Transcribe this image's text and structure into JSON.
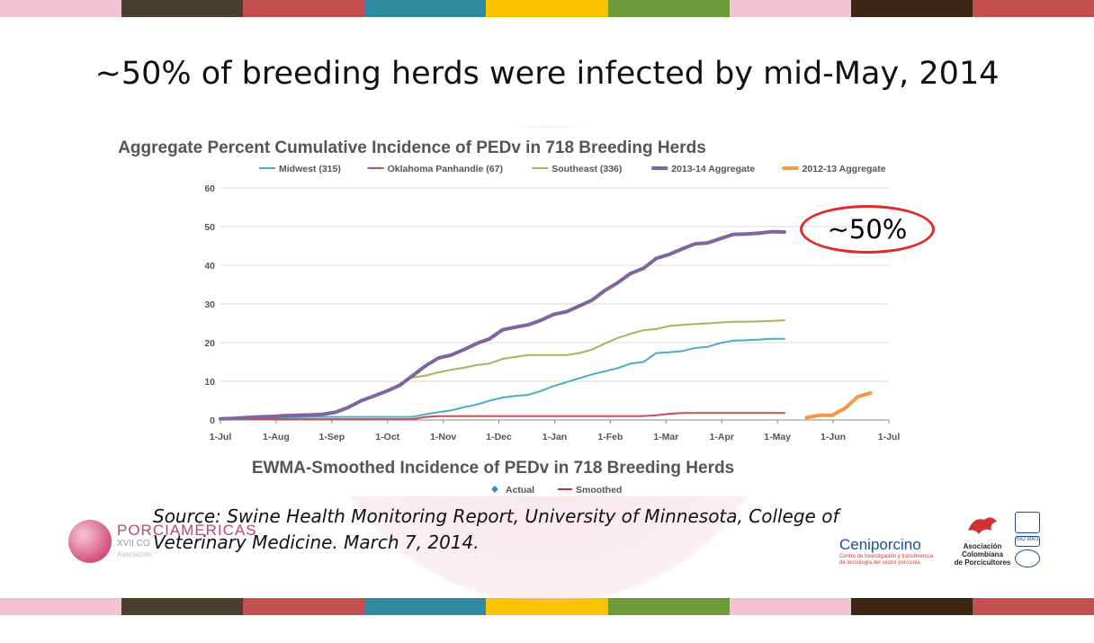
{
  "stripe_colors": [
    "#f2c4d3",
    "#4a4030",
    "#c25050",
    "#2f8a9f",
    "#fbc200",
    "#6e9a3c",
    "#f2c4d3",
    "#3e2614",
    "#c25050"
  ],
  "slide_title": "~50% of breeding herds were infected by mid-May, 2014",
  "callout": "~50%",
  "source_text": "Source: Swine Health Monitoring Report, University of Minnesota, College of Veterinary Medicine. March 7, 2014.",
  "logos": {
    "left_name": "PORCIAMÉRICAS",
    "left_sub": "XVII CO",
    "left_sub2": "Asociación",
    "ceni_name": "Ceniporcino",
    "ceni_tag1": "Centro de Investigación y transferencia",
    "ceni_tag2": "de tecnología del sector porcícola",
    "aso_line1": "Asociación",
    "aso_line2": "Colombiana",
    "aso_line3": "de Porcicultores",
    "iso1": "ISO 9001"
  },
  "chart_data": {
    "type": "line",
    "title": "Aggregate Percent Cumulative Incidence of PEDv in 718 Breeding Herds",
    "subtitle": "EWMA-Smoothed Incidence of PEDv in 718 Breeding Herds",
    "subtitle_legend": [
      {
        "name": "Actual",
        "color": "#4a86c6"
      },
      {
        "name": "Smoothed",
        "color": "#c0392b"
      }
    ],
    "x_ticks": [
      "1-Jul",
      "1-Aug",
      "1-Sep",
      "1-Oct",
      "1-Nov",
      "1-Dec",
      "1-Jan",
      "1-Feb",
      "1-Mar",
      "1-Apr",
      "1-May",
      "1-Jun",
      "1-Jul"
    ],
    "ylim": [
      0,
      60
    ],
    "y_ticks": [
      0,
      10,
      20,
      30,
      40,
      50,
      60
    ],
    "grid": true,
    "legend_position": "top",
    "series": [
      {
        "name": "Midwest (315)",
        "color": "#4bacc6",
        "width": 2,
        "points": [
          [
            0,
            0.3
          ],
          [
            7,
            0.4
          ],
          [
            14,
            0.5
          ],
          [
            21,
            0.5
          ],
          [
            28,
            0.6
          ],
          [
            35,
            0.6
          ],
          [
            42,
            0.7
          ],
          [
            49,
            0.8
          ],
          [
            56,
            0.8
          ],
          [
            63,
            0.8
          ],
          [
            70,
            0.8
          ],
          [
            77,
            0.8
          ],
          [
            84,
            0.8
          ],
          [
            91,
            0.8
          ],
          [
            98,
            0.8
          ],
          [
            105,
            0.8
          ],
          [
            112,
            1.5
          ],
          [
            119,
            2.0
          ],
          [
            126,
            2.5
          ],
          [
            133,
            3.3
          ],
          [
            140,
            4.0
          ],
          [
            147,
            5.0
          ],
          [
            154,
            5.8
          ],
          [
            161,
            6.2
          ],
          [
            168,
            6.5
          ],
          [
            175,
            7.5
          ],
          [
            182,
            8.8
          ],
          [
            189,
            9.8
          ],
          [
            196,
            10.8
          ],
          [
            203,
            11.8
          ],
          [
            210,
            12.6
          ],
          [
            217,
            13.4
          ],
          [
            224,
            14.6
          ],
          [
            231,
            15.0
          ],
          [
            238,
            17.3
          ],
          [
            245,
            17.5
          ],
          [
            252,
            17.8
          ],
          [
            259,
            18.6
          ],
          [
            266,
            18.9
          ],
          [
            273,
            19.9
          ],
          [
            280,
            20.5
          ],
          [
            287,
            20.6
          ],
          [
            294,
            20.8
          ],
          [
            301,
            21.0
          ],
          [
            308,
            21.0
          ]
        ]
      },
      {
        "name": "Oklahoma Panhandle (67)",
        "color": "#c0504d",
        "width": 2,
        "points": [
          [
            0,
            0.2
          ],
          [
            105,
            0.2
          ],
          [
            112,
            0.8
          ],
          [
            119,
            1.0
          ],
          [
            230,
            1.0
          ],
          [
            238,
            1.2
          ],
          [
            245,
            1.6
          ],
          [
            252,
            1.8
          ],
          [
            308,
            1.8
          ]
        ]
      },
      {
        "name": "Southeast (336)",
        "color": "#9bbb59",
        "width": 2,
        "points": [
          [
            105,
            11.0
          ],
          [
            112,
            11.5
          ],
          [
            119,
            12.3
          ],
          [
            126,
            13.0
          ],
          [
            133,
            13.5
          ],
          [
            140,
            14.2
          ],
          [
            147,
            14.6
          ],
          [
            154,
            15.8
          ],
          [
            161,
            16.3
          ],
          [
            168,
            16.8
          ],
          [
            175,
            16.8
          ],
          [
            182,
            16.8
          ],
          [
            189,
            16.8
          ],
          [
            196,
            17.3
          ],
          [
            203,
            18.2
          ],
          [
            210,
            19.8
          ],
          [
            217,
            21.2
          ],
          [
            224,
            22.3
          ],
          [
            231,
            23.2
          ],
          [
            238,
            23.5
          ],
          [
            245,
            24.3
          ],
          [
            252,
            24.6
          ],
          [
            259,
            24.8
          ],
          [
            266,
            25.0
          ],
          [
            273,
            25.2
          ],
          [
            280,
            25.4
          ],
          [
            287,
            25.4
          ],
          [
            294,
            25.5
          ],
          [
            301,
            25.6
          ],
          [
            308,
            25.8
          ]
        ]
      },
      {
        "name": "2013-14 Aggregate",
        "color": "#8064a2",
        "width": 4,
        "points": [
          [
            0,
            0.3
          ],
          [
            7,
            0.4
          ],
          [
            14,
            0.6
          ],
          [
            21,
            0.8
          ],
          [
            28,
            0.9
          ],
          [
            35,
            1.1
          ],
          [
            42,
            1.2
          ],
          [
            49,
            1.3
          ],
          [
            56,
            1.5
          ],
          [
            63,
            2.0
          ],
          [
            70,
            3.3
          ],
          [
            77,
            5.0
          ],
          [
            84,
            6.2
          ],
          [
            91,
            7.5
          ],
          [
            98,
            9.0
          ],
          [
            105,
            11.5
          ],
          [
            112,
            14.0
          ],
          [
            119,
            16.0
          ],
          [
            126,
            16.8
          ],
          [
            133,
            18.2
          ],
          [
            140,
            19.8
          ],
          [
            147,
            21.0
          ],
          [
            154,
            23.3
          ],
          [
            161,
            24.0
          ],
          [
            168,
            24.6
          ],
          [
            175,
            25.8
          ],
          [
            182,
            27.3
          ],
          [
            189,
            28.0
          ],
          [
            196,
            29.5
          ],
          [
            203,
            31.0
          ],
          [
            210,
            33.5
          ],
          [
            217,
            35.5
          ],
          [
            224,
            37.9
          ],
          [
            231,
            39.2
          ],
          [
            238,
            41.8
          ],
          [
            245,
            42.8
          ],
          [
            252,
            44.2
          ],
          [
            259,
            45.5
          ],
          [
            266,
            45.8
          ],
          [
            273,
            46.9
          ],
          [
            280,
            48.0
          ],
          [
            287,
            48.1
          ],
          [
            294,
            48.3
          ],
          [
            301,
            48.7
          ],
          [
            308,
            48.6
          ]
        ]
      },
      {
        "name": "2012-13 Aggregate",
        "color": "#f79646",
        "width": 4,
        "points": [
          [
            320,
            0.6
          ],
          [
            327,
            1.2
          ],
          [
            334,
            1.2
          ],
          [
            341,
            3.0
          ],
          [
            348,
            6.0
          ],
          [
            355,
            7.0
          ]
        ]
      }
    ]
  }
}
